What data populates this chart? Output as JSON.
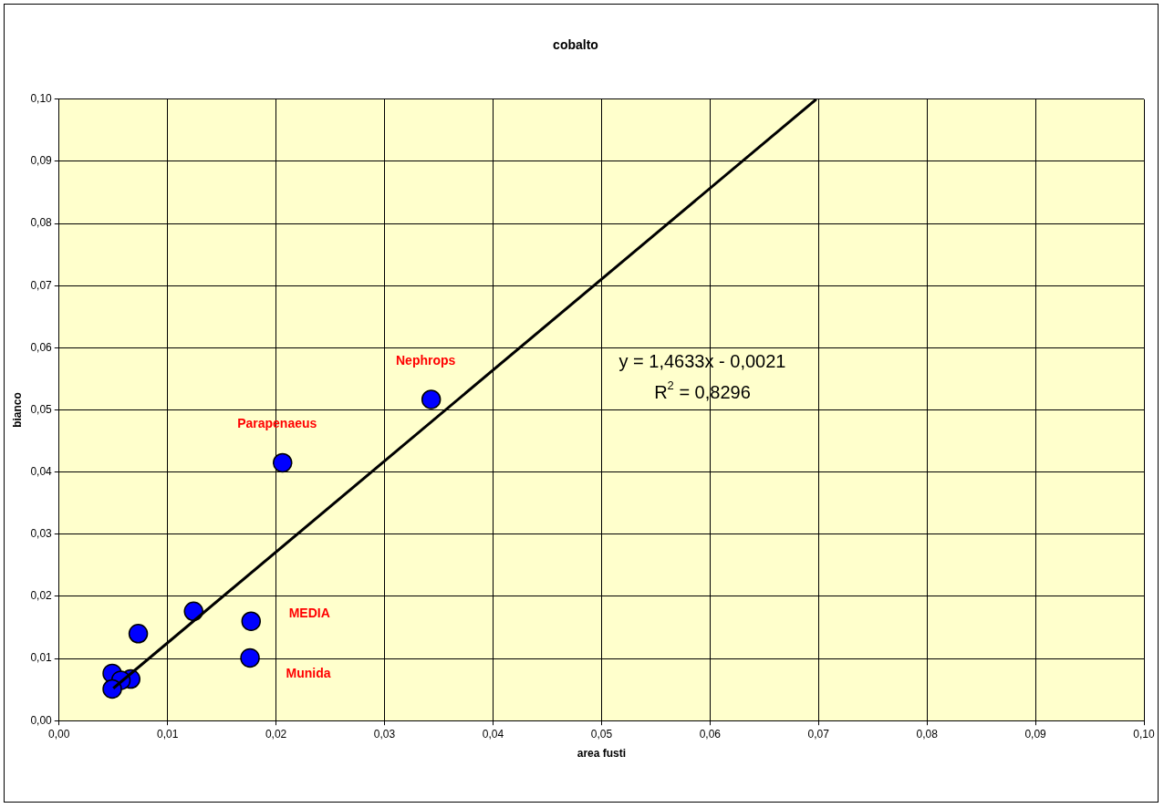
{
  "chart_data": {
    "type": "scatter",
    "title": "cobalto",
    "xlabel": "area fusti",
    "ylabel": "bianco",
    "series": [
      {
        "color": "#0000ff",
        "marker": "circle",
        "x": [
          0.0049,
          0.0066,
          0.0057,
          0.0049,
          0.0073,
          0.0124,
          0.0177,
          0.0176,
          0.0206,
          0.0343
        ],
        "values": [
          0.0076,
          0.0067,
          0.0065,
          0.0051,
          0.014,
          0.0176,
          0.016,
          0.0101,
          0.0415,
          0.0517
        ]
      },
      {
        "type": "line",
        "color": "#000000",
        "marker": "none",
        "x": [
          0.005,
          0.0698
        ],
        "values": [
          0.0052,
          0.1
        ]
      }
    ],
    "annotations": [
      {
        "text": "Nephrops",
        "x": 0.0343,
        "y": 0.0517
      },
      {
        "text": "Parapenaeus",
        "x": 0.0206,
        "y": 0.0415
      },
      {
        "text": "MEDIA",
        "x": 0.0177,
        "y": 0.016
      },
      {
        "text": "Munida",
        "x": 0.0176,
        "y": 0.0101
      },
      "y = 1,4633x - 0,0021",
      "R$^{2}$ = 0,8296"
    ],
    "xlim": [
      0,
      0.1
    ],
    "ylim": [
      0,
      0.1
    ],
    "xticks": [
      {
        "value": 0,
        "label": "0,00"
      },
      {
        "value": 0.01,
        "label": "0,01"
      },
      {
        "value": 0.02,
        "label": "0,02"
      },
      {
        "value": 0.03,
        "label": "0,03"
      },
      {
        "value": 0.04,
        "label": "0,04"
      },
      {
        "value": 0.05,
        "label": "0,05"
      },
      {
        "value": 0.06,
        "label": "0,06"
      },
      {
        "value": 0.07,
        "label": "0,07"
      },
      {
        "value": 0.08,
        "label": "0,08"
      },
      {
        "value": 0.09,
        "label": "0,09"
      },
      {
        "value": 0.1,
        "label": "0,10"
      }
    ],
    "yticks": [
      {
        "value": 0,
        "label": "0,00"
      },
      {
        "value": 0.01,
        "label": "0,01"
      },
      {
        "value": 0.02,
        "label": "0,02"
      },
      {
        "value": 0.03,
        "label": "0,03"
      },
      {
        "value": 0.04,
        "label": "0,04"
      },
      {
        "value": 0.05,
        "label": "0,05"
      },
      {
        "value": 0.06,
        "label": "0,06"
      },
      {
        "value": 0.07,
        "label": "0,07"
      },
      {
        "value": 0.08,
        "label": "0,08"
      },
      {
        "value": 0.09,
        "label": "0,09"
      },
      {
        "value": 0.1,
        "label": "0,10"
      }
    ],
    "grid": true,
    "legend": false
  }
}
